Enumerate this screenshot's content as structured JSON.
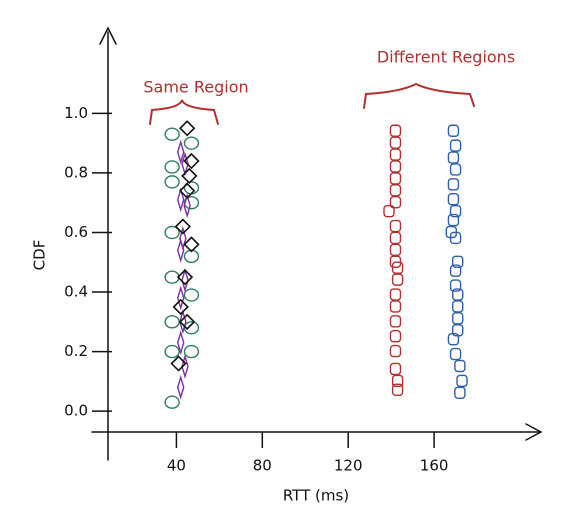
{
  "chart_data": {
    "type": "scatter",
    "xlabel": "RTT (ms)",
    "ylabel": "CDF",
    "annotations": [
      "Same Region",
      "Different Regions"
    ],
    "xlim": [
      10,
      200
    ],
    "ylim": [
      -0.07,
      1.28
    ],
    "xticks": [
      40,
      80,
      120,
      160
    ],
    "yticks": [
      {
        "value": 0,
        "label": "0.0"
      },
      {
        "value": 0.2,
        "label": "0.2"
      },
      {
        "value": 0.4,
        "label": "0.4"
      },
      {
        "value": 0.6,
        "label": "0.6"
      },
      {
        "value": 0.8,
        "label": "0.8"
      },
      {
        "value": 1,
        "label": "1.0"
      }
    ],
    "series": [
      {
        "marker": "circle",
        "color": "#2e7d5b",
        "x": [
          38,
          47,
          38,
          47,
          38,
          47,
          38,
          47,
          38,
          47,
          38,
          47,
          38,
          47,
          38
        ],
        "values": [
          0.93,
          0.9,
          0.82,
          0.75,
          0.77,
          0.7,
          0.6,
          0.52,
          0.45,
          0.39,
          0.3,
          0.28,
          0.2,
          0.2,
          0.03
        ]
      },
      {
        "marker": "thin-diamond",
        "color": "#7b2fa0",
        "x": [
          42,
          44,
          42,
          45,
          43,
          42,
          44,
          42,
          43,
          42,
          44,
          42
        ],
        "values": [
          0.87,
          0.83,
          0.71,
          0.69,
          0.58,
          0.54,
          0.44,
          0.38,
          0.3,
          0.23,
          0.15,
          0.08
        ]
      },
      {
        "marker": "diamond",
        "color": "#111111",
        "x": [
          45,
          47,
          46,
          45,
          43,
          47,
          44,
          42,
          45,
          41
        ],
        "values": [
          0.95,
          0.84,
          0.79,
          0.74,
          0.62,
          0.56,
          0.45,
          0.35,
          0.3,
          0.16
        ]
      },
      {
        "marker": "square",
        "color": "#b03030",
        "x": [
          142,
          142,
          142,
          142,
          142,
          142,
          142,
          139,
          142,
          142,
          142,
          142,
          143,
          143,
          142,
          142,
          142,
          142,
          142,
          142,
          143,
          143
        ],
        "values": [
          0.94,
          0.9,
          0.86,
          0.82,
          0.78,
          0.74,
          0.7,
          0.67,
          0.62,
          0.58,
          0.54,
          0.5,
          0.48,
          0.44,
          0.39,
          0.35,
          0.3,
          0.25,
          0.2,
          0.14,
          0.1,
          0.07
        ]
      },
      {
        "marker": "square",
        "color": "#2f5fa8",
        "x": [
          169,
          170,
          169,
          170,
          169,
          169,
          170,
          169,
          168,
          170,
          171,
          170,
          170,
          171,
          171,
          171,
          171,
          169,
          170,
          172,
          173,
          172
        ],
        "values": [
          0.94,
          0.89,
          0.85,
          0.81,
          0.76,
          0.71,
          0.67,
          0.64,
          0.6,
          0.58,
          0.5,
          0.47,
          0.42,
          0.39,
          0.35,
          0.31,
          0.27,
          0.24,
          0.19,
          0.15,
          0.1,
          0.06
        ]
      }
    ]
  }
}
